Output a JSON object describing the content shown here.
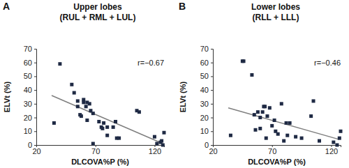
{
  "chart_data": [
    {
      "type": "scatter",
      "panel_label": "A",
      "title": "Upper lobes",
      "subtitle": "(RUL + RML + LUL)",
      "x_label": "DLCOVA%P (%)",
      "y_label": "ELVt (%)",
      "annotation": "r=−0.67",
      "x": [
        35,
        40,
        50,
        52,
        55,
        55,
        57,
        58,
        60,
        60,
        62,
        63,
        63,
        65,
        66,
        68,
        68,
        73,
        75,
        76,
        77,
        80,
        80,
        85,
        87,
        88,
        90,
        105,
        107,
        120,
        122,
        125,
        127,
        128,
        126
      ],
      "values": [
        16,
        59,
        44,
        38,
        32,
        28,
        22,
        21,
        33,
        31,
        28,
        18,
        31,
        30,
        25,
        23,
        1,
        17,
        13,
        12,
        16,
        13,
        7,
        13,
        17,
        5,
        5,
        25,
        24,
        6,
        1,
        2,
        0,
        9,
        3
      ],
      "trend_line": {
        "x": [
          33,
          127
        ],
        "y": [
          36,
          1
        ]
      },
      "color": "#1f2a44",
      "marker": "square",
      "xlim": [
        20,
        128
      ],
      "xticks": [
        20,
        70,
        120
      ],
      "ylim": [
        0,
        70
      ],
      "yticks": [
        0,
        10,
        20,
        30,
        40,
        50,
        60,
        70
      ]
    },
    {
      "type": "scatter",
      "panel_label": "B",
      "title": "Lower lobes",
      "subtitle": "(RLL + LLL)",
      "x_label": "DLCOVA%P (%)",
      "y_label": "ELVt (%)",
      "annotation": "r=−0.46",
      "x": [
        35,
        45,
        46,
        53,
        55,
        56,
        58,
        60,
        60,
        62,
        63,
        64,
        65,
        66,
        68,
        70,
        72,
        73,
        75,
        78,
        80,
        82,
        83,
        85,
        90,
        95,
        103,
        105,
        110,
        122,
        125,
        127,
        128
      ],
      "values": [
        7,
        61,
        61,
        51,
        22,
        11,
        24,
        12,
        20,
        24,
        28,
        28,
        5,
        21,
        27,
        14,
        18,
        10,
        8,
        30,
        3,
        16,
        7,
        16,
        6,
        5,
        21,
        32,
        3,
        2,
        0,
        5,
        10
      ],
      "trend_line": {
        "x": [
          33,
          127
        ],
        "y": [
          27,
          4
        ]
      },
      "color": "#1f2a44",
      "marker": "square",
      "xlim": [
        20,
        128
      ],
      "xticks": [
        20,
        70,
        120
      ],
      "ylim": [
        0,
        70
      ],
      "yticks": [
        0,
        10,
        20,
        30,
        40,
        50,
        60,
        70
      ]
    }
  ]
}
